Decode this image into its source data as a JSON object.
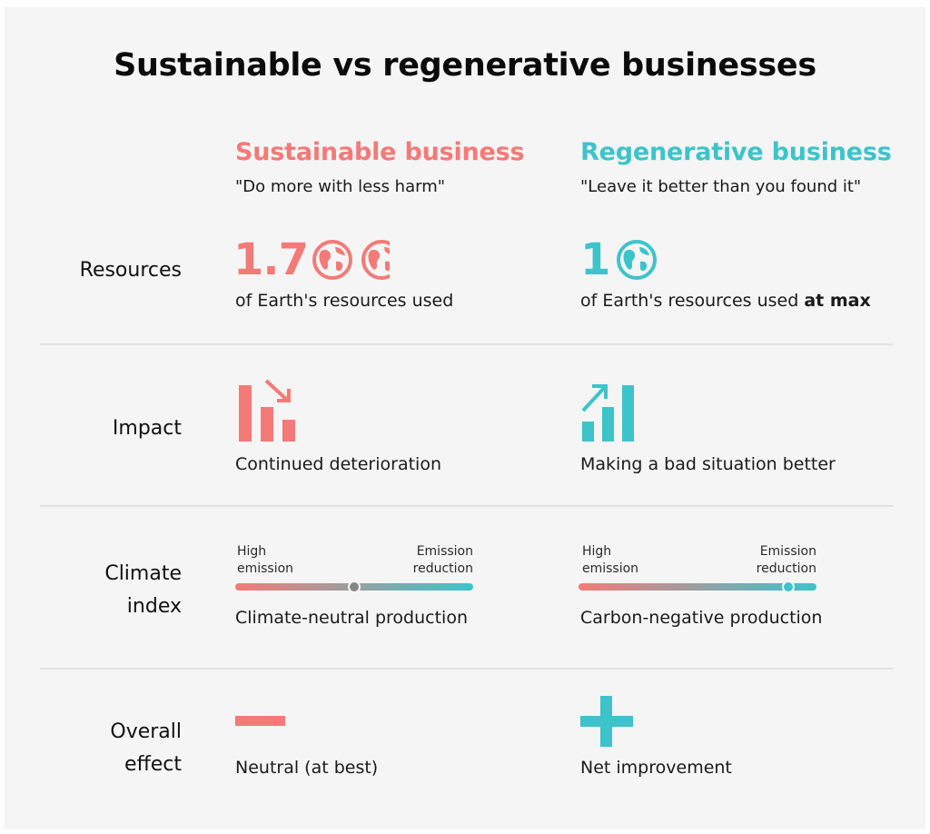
{
  "title": "Sustainable vs regenerative businesses",
  "colors": {
    "sustainable": "#f47a78",
    "regenerative": "#3cc4ca",
    "background": "#f5f5f5",
    "neutral_knob": "#888888"
  },
  "columns": {
    "sustainable": {
      "heading": "Sustainable business",
      "quote": "\"Do more with less harm\""
    },
    "regenerative": {
      "heading": "Regenerative business",
      "quote": "\"Leave it better than you found it\""
    }
  },
  "rows": {
    "resources": {
      "label": "Resources",
      "sustainable": {
        "number": "1.7",
        "icons": [
          "globe-icon",
          "partial-globe-icon"
        ],
        "caption": "of Earth's resources used"
      },
      "regenerative": {
        "number": "1",
        "icons": [
          "globe-icon"
        ],
        "caption": "of Earth's resources used",
        "caption_bold": "at max"
      }
    },
    "impact": {
      "label": "Impact",
      "sustainable": {
        "icon": "declining-bar-chart-icon",
        "caption": "Continued deterioration"
      },
      "regenerative": {
        "icon": "rising-bar-chart-icon",
        "caption": "Making a bad situation better"
      }
    },
    "climate": {
      "label_line1": "Climate",
      "label_line2": "index",
      "scale_left_line1": "High",
      "scale_left_line2": "emission",
      "scale_right_line1": "Emission",
      "scale_right_line2": "reduction",
      "sustainable": {
        "marker_level": 0.5,
        "caption": "Climate-neutral production"
      },
      "regenerative": {
        "marker_level": 0.88,
        "caption": "Carbon-negative production"
      }
    },
    "overall": {
      "label_line1": "Overall",
      "label_line2": "effect",
      "sustainable": {
        "icon": "minus-icon",
        "caption": "Neutral (at best)"
      },
      "regenerative": {
        "icon": "plus-icon",
        "caption": "Net improvement"
      }
    }
  }
}
